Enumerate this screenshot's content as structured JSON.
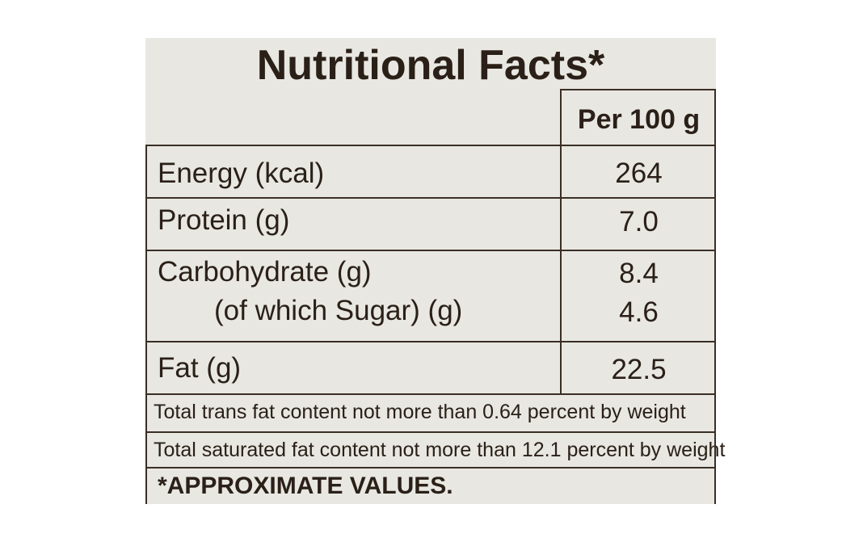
{
  "title": "Nutritional Facts*",
  "table": {
    "header": "Per 100 g",
    "rows": [
      [
        "Energy (kcal)",
        "264"
      ],
      [
        "Protein (g)",
        "7.0"
      ],
      [
        "Carbohydrate (g)",
        "8.4"
      ],
      [
        "(of which Sugar) (g)",
        "4.6"
      ],
      [
        "Fat (g)",
        "22.5"
      ]
    ]
  },
  "notes": [
    "Total trans fat content not more than 0.64 percent by weight",
    "Total saturated fat content not more than 12.1 percent by weight"
  ],
  "footer": "*APPROXIMATE VALUES."
}
